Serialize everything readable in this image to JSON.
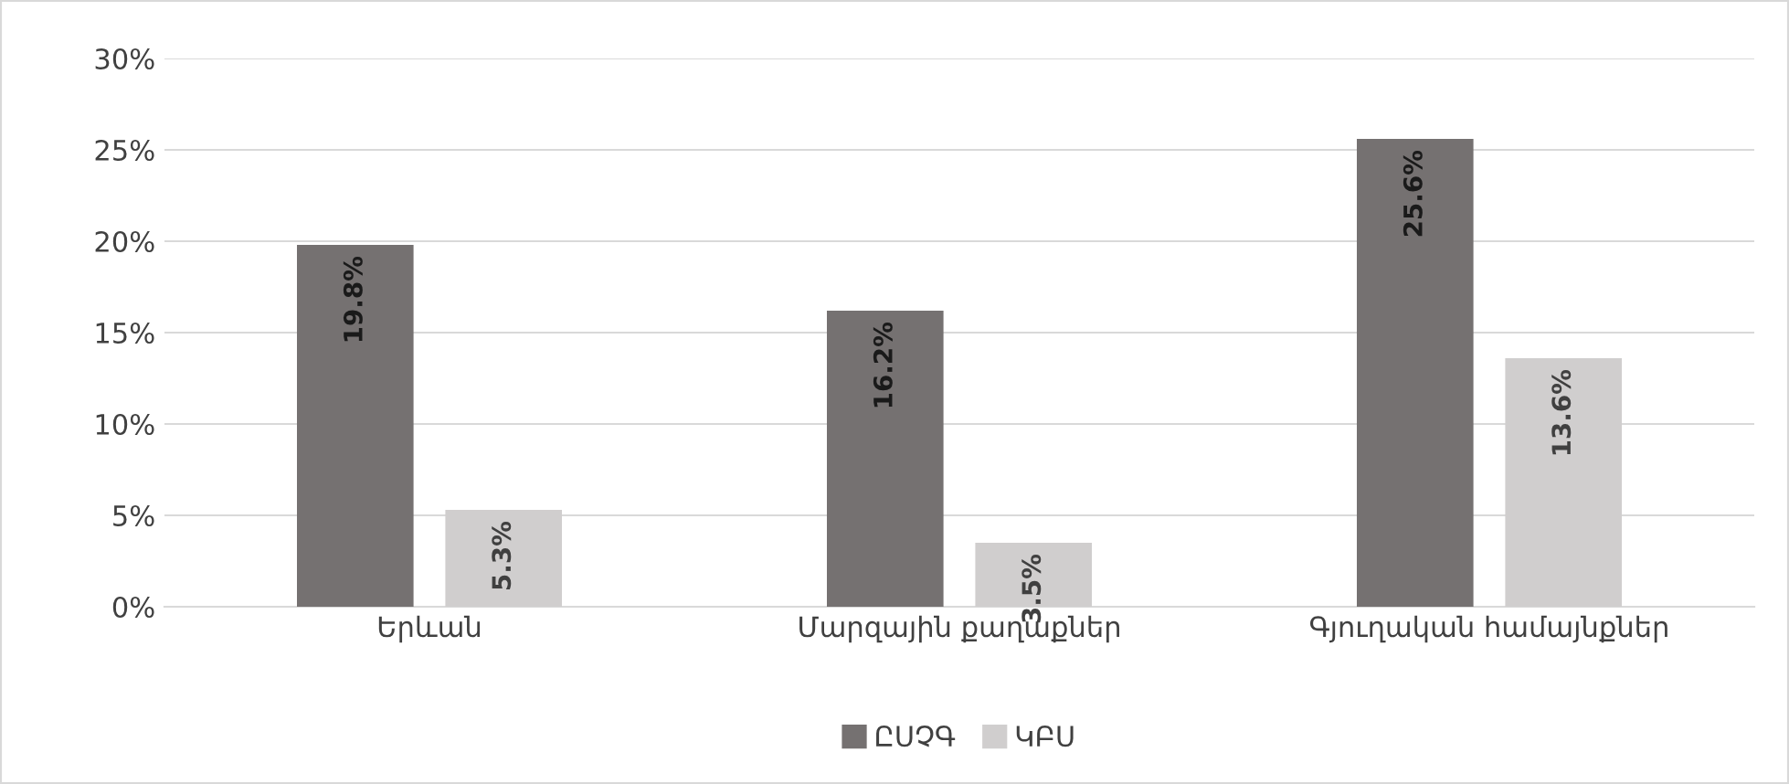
{
  "chart_data": {
    "type": "bar",
    "categories": [
      "Երևան",
      "Մարզային քաղաքներ",
      "Գյուղական համայնքներ"
    ],
    "series": [
      {
        "name": "ԸՍՉԳ",
        "color": "#757171",
        "values": [
          19.8,
          16.2,
          25.6
        ],
        "value_labels": [
          "19.8%",
          "16.2%",
          "25.6%"
        ]
      },
      {
        "name": "ԿԲՍ",
        "color": "#d0cece",
        "values": [
          5.3,
          3.5,
          13.6
        ],
        "value_labels": [
          "5.3%",
          "3.5%",
          "13.6%"
        ]
      }
    ],
    "ylim": [
      0,
      30
    ],
    "yticks": [
      {
        "value": 0,
        "label": "0%"
      },
      {
        "value": 5,
        "label": "5%"
      },
      {
        "value": 10,
        "label": "10%"
      },
      {
        "value": 15,
        "label": "15%"
      },
      {
        "value": 20,
        "label": "20%"
      },
      {
        "value": 25,
        "label": "25%"
      },
      {
        "value": 30,
        "label": "30%"
      }
    ],
    "grid": "y",
    "legend": "bottom"
  }
}
